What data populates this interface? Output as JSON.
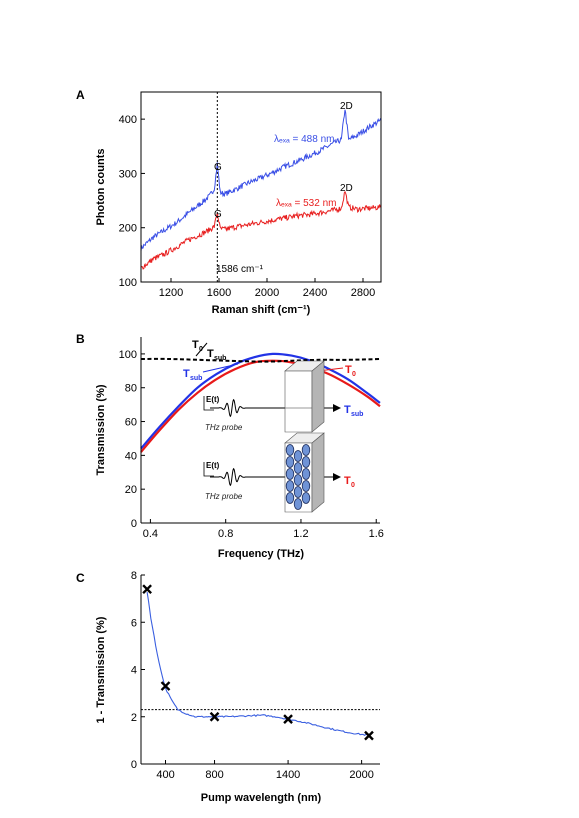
{
  "chart_data": [
    {
      "panel": "A",
      "type": "line",
      "xlabel": "Raman shift (cm⁻¹)",
      "ylabel": "Photon counts",
      "xlim": [
        950,
        2950
      ],
      "ylim": [
        100,
        450
      ],
      "xticks": [
        "1200",
        "1600",
        "2000",
        "2400",
        "2800"
      ],
      "yticks": [
        "100",
        "200",
        "300",
        "400"
      ],
      "vline": {
        "x": 1586,
        "label": "1586 cm⁻¹"
      },
      "series": [
        {
          "color": "#3a4fe6",
          "label": "λₑₓₐ = 488 nm",
          "x": [
            950,
            1050,
            1150,
            1250,
            1350,
            1450,
            1520,
            1560,
            1586,
            1610,
            1650,
            1750,
            1850,
            1950,
            2050,
            2150,
            2250,
            2350,
            2450,
            2550,
            2620,
            2650,
            2680,
            2750,
            2850,
            2950
          ],
          "y": [
            162,
            182,
            196,
            210,
            228,
            245,
            258,
            272,
            318,
            265,
            262,
            272,
            283,
            292,
            302,
            313,
            322,
            332,
            343,
            355,
            362,
            420,
            362,
            370,
            385,
            398
          ]
        },
        {
          "color": "#e82020",
          "label": "λₑₓₐ = 532 nm",
          "x": [
            950,
            1050,
            1150,
            1250,
            1350,
            1450,
            1520,
            1560,
            1586,
            1610,
            1650,
            1750,
            1850,
            1950,
            2050,
            2150,
            2250,
            2350,
            2450,
            2550,
            2620,
            2650,
            2680,
            2750,
            2850,
            2950
          ],
          "y": [
            125,
            142,
            152,
            165,
            178,
            188,
            196,
            202,
            228,
            198,
            197,
            202,
            206,
            210,
            214,
            218,
            222,
            224,
            228,
            232,
            236,
            268,
            238,
            234,
            236,
            238
          ]
        }
      ],
      "peaks": [
        {
          "series": 0,
          "text": "G",
          "x": 1586,
          "y": 300
        },
        {
          "series": 0,
          "text": "2D",
          "x": 2650,
          "y": 420
        },
        {
          "series": 1,
          "text": "G",
          "x": 1586,
          "y": 205
        },
        {
          "series": 1,
          "text": "2D",
          "x": 2650,
          "y": 262
        }
      ]
    },
    {
      "panel": "B",
      "type": "line",
      "xlabel": "Frequency (THz)",
      "ylabel": "Transmission (%)",
      "xlim": [
        0.35,
        1.62
      ],
      "ylim": [
        0,
        110
      ],
      "xticks": [
        "0.4",
        "0.8",
        "1.2",
        "1.6"
      ],
      "yticks": [
        "0",
        "20",
        "40",
        "60",
        "80",
        "100"
      ],
      "series": [
        {
          "name": "T_sub",
          "color": "#2233e6",
          "x": [
            0.35,
            0.45,
            0.55,
            0.65,
            0.75,
            0.85,
            0.95,
            1.05,
            1.15,
            1.25,
            1.35,
            1.45,
            1.55,
            1.62
          ],
          "y": [
            44,
            57,
            69,
            80,
            88,
            94,
            98,
            100,
            99,
            96,
            91,
            85,
            77,
            71
          ]
        },
        {
          "name": "T_0",
          "color": "#e81a1a",
          "x": [
            0.35,
            0.45,
            0.55,
            0.65,
            0.75,
            0.85,
            0.95,
            1.05,
            1.15,
            1.25,
            1.35,
            1.45,
            1.55,
            1.62
          ],
          "y": [
            42,
            55,
            67,
            77,
            85,
            91,
            95,
            96,
            95,
            92,
            88,
            82,
            75,
            69
          ]
        },
        {
          "name": "T_0/T_sub",
          "color": "#000000",
          "dashed": true,
          "x": [
            0.35,
            0.5,
            0.65,
            0.8,
            0.95,
            1.05,
            1.15,
            1.3,
            1.45,
            1.62
          ],
          "y": [
            97,
            97,
            96.5,
            96,
            95.5,
            95.5,
            96,
            96.5,
            96.5,
            97
          ]
        }
      ],
      "labels": {
        "ratio_num": "T",
        "ratio_num_sub": "0",
        "ratio_den": "T",
        "ratio_den_sub": "sub",
        "tsub": "T",
        "tsub_sub": "sub",
        "t0": "T",
        "t0_sub": "0",
        "probe_field": "E(t)",
        "probe_caption": "THz probe"
      }
    },
    {
      "panel": "C",
      "type": "line",
      "xlabel": "Pump wavelength (nm)",
      "ylabel": "1 - Transmission (%)",
      "xlim": [
        200,
        2150
      ],
      "ylim": [
        0,
        8
      ],
      "xticks": [
        "400",
        "800",
        "1400",
        "2000"
      ],
      "yticks": [
        "0",
        "2",
        "4",
        "6",
        "8"
      ],
      "hline": 2.3,
      "curve": {
        "color": "#3a5fe0",
        "x": [
          250,
          280,
          320,
          360,
          400,
          450,
          500,
          560,
          640,
          720,
          800,
          900,
          1000,
          1100,
          1200,
          1300,
          1400,
          1500,
          1600,
          1700,
          1800,
          1900,
          2000,
          2060
        ],
        "y": [
          7.3,
          6.2,
          5.0,
          4.0,
          3.2,
          2.7,
          2.3,
          2.15,
          2.0,
          2.0,
          2.0,
          2.0,
          2.02,
          2.05,
          2.06,
          2.0,
          1.9,
          1.8,
          1.68,
          1.55,
          1.43,
          1.33,
          1.25,
          1.22
        ]
      },
      "markers": {
        "x": [
          250,
          400,
          800,
          1400,
          2060
        ],
        "y": [
          7.4,
          3.3,
          2.0,
          1.9,
          1.2
        ]
      }
    }
  ],
  "panel_labels": [
    "A",
    "B",
    "C"
  ]
}
